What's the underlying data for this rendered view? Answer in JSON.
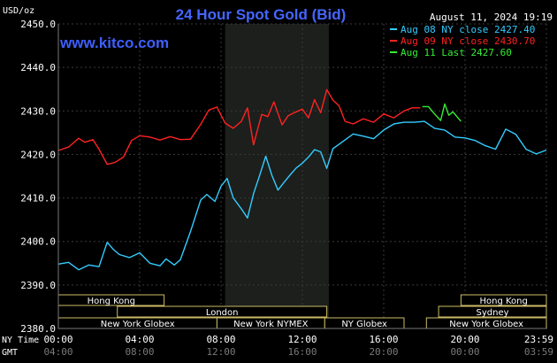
{
  "chart_data": {
    "type": "line",
    "title": "24 Hour Spot Gold (Bid)",
    "timestamp": "August 11, 2024 19:19",
    "brand": "www.kitco.com",
    "y_unit": "USD/oz",
    "ylim": [
      2380,
      2450
    ],
    "y_ticks": [
      "2450.0",
      "2440.0",
      "2430.0",
      "2420.0",
      "2410.0",
      "2400.0",
      "2390.0",
      "2380.0"
    ],
    "x_row_labels": {
      "ny": "NY Time",
      "gmt": "GMT"
    },
    "x_ticks_ny": [
      "00:00",
      "04:00",
      "08:00",
      "12:00",
      "16:00",
      "20:00",
      "23:59"
    ],
    "x_ticks_gmt": [
      "04:00",
      "08:00",
      "12:00",
      "16:00",
      "20:00",
      "00:00",
      "03:59"
    ],
    "x_range_hours": [
      0,
      24
    ],
    "highlight_hours": [
      8.2,
      13.3
    ],
    "legend": [
      {
        "label": "Aug 08 NY close 2427.40",
        "color": "#33ccff"
      },
      {
        "label": "Aug 09 NY close 2430.70",
        "color": "#ff2222"
      },
      {
        "label": "Aug 11 Last 2427.60",
        "color": "#33ee33"
      }
    ],
    "series": [
      {
        "name": "Aug 08",
        "color": "#33ccff",
        "x": [
          0,
          0.5,
          1,
          1.5,
          2,
          2.4,
          2.7,
          3,
          3.5,
          4,
          4.5,
          5,
          5.3,
          5.7,
          6,
          6.5,
          7,
          7.3,
          7.7,
          8,
          8.3,
          8.6,
          9,
          9.3,
          9.6,
          9.9,
          10.2,
          10.5,
          10.8,
          11.1,
          11.4,
          11.7,
          12,
          12.3,
          12.6,
          12.9,
          13.2,
          13.5,
          14,
          14.5,
          15,
          15.5,
          16,
          16.5,
          17,
          17.5,
          18,
          18.5,
          19,
          19.5,
          20,
          20.5,
          21,
          21.5,
          22,
          22.5,
          23,
          23.5,
          24
        ],
        "values": [
          2394.8,
          2395.2,
          2393.5,
          2394.6,
          2394.2,
          2399.8,
          2398.2,
          2397.0,
          2396.3,
          2397.4,
          2395.0,
          2394.4,
          2396.0,
          2394.6,
          2395.8,
          2402.3,
          2409.5,
          2410.8,
          2409.2,
          2412.7,
          2414.5,
          2410.0,
          2407.5,
          2405.4,
          2411.0,
          2415.2,
          2419.6,
          2415.2,
          2411.8,
          2413.6,
          2415.3,
          2416.9,
          2418.0,
          2419.4,
          2421.1,
          2420.6,
          2416.8,
          2421.3,
          2423.0,
          2424.7,
          2424.2,
          2423.6,
          2425.6,
          2427.0,
          2427.4,
          2427.4,
          2427.6,
          2426.0,
          2425.6,
          2424.0,
          2423.8,
          2423.2,
          2422.0,
          2421.2,
          2425.8,
          2424.6,
          2421.2,
          2420.1,
          2421.0
        ]
      },
      {
        "name": "Aug 09",
        "color": "#ff2222",
        "x": [
          0,
          0.5,
          1,
          1.3,
          1.7,
          2,
          2.4,
          2.8,
          3.2,
          3.6,
          4,
          4.5,
          5,
          5.5,
          6,
          6.5,
          7,
          7.4,
          7.8,
          8.2,
          8.6,
          9,
          9.3,
          9.6,
          9.8,
          10,
          10.3,
          10.6,
          11,
          11.3,
          11.6,
          12,
          12.3,
          12.6,
          12.9,
          13.2,
          13.5,
          13.8,
          14.1,
          14.5,
          15,
          15.5,
          16,
          16.5,
          17,
          17.4,
          17.8
        ],
        "values": [
          2420.9,
          2421.7,
          2423.7,
          2422.8,
          2423.4,
          2421.2,
          2417.7,
          2418.2,
          2419.4,
          2423.2,
          2424.3,
          2424.0,
          2423.3,
          2424.1,
          2423.4,
          2423.5,
          2426.9,
          2430.2,
          2430.9,
          2427.2,
          2426.0,
          2427.6,
          2430.7,
          2422.2,
          2425.8,
          2429.2,
          2428.7,
          2432.1,
          2426.8,
          2428.9,
          2429.6,
          2430.4,
          2428.4,
          2432.6,
          2429.6,
          2434.9,
          2432.5,
          2431.2,
          2427.6,
          2427.0,
          2428.2,
          2427.4,
          2429.3,
          2428.4,
          2430.0,
          2430.7,
          2430.7
        ]
      },
      {
        "name": "Aug 11",
        "color": "#33ee33",
        "x": [
          17.9,
          18.2,
          18.5,
          18.8,
          19.0,
          19.2,
          19.4,
          19.6,
          19.8
        ],
        "values": [
          2431.0,
          2431.0,
          2429.3,
          2427.8,
          2431.6,
          2429.0,
          2429.8,
          2428.7,
          2427.6
        ]
      }
    ],
    "session_bars": [
      {
        "label": "Hong Kong",
        "start": 0,
        "end": 5.2,
        "row": 0
      },
      {
        "label": "London",
        "start": 2.9,
        "end": 13.2,
        "row": 1
      },
      {
        "label": "New York Globex",
        "start": 0,
        "end": 7.8,
        "row": 2
      },
      {
        "label": "New York NYMEX",
        "start": 7.8,
        "end": 13.1,
        "row": 2
      },
      {
        "label": "NY Globex",
        "start": 13.1,
        "end": 17.0,
        "row": 2
      },
      {
        "label": "Hong Kong",
        "start": 19.8,
        "end": 24,
        "row": 0
      },
      {
        "label": "Sydney",
        "start": 18.7,
        "end": 24,
        "row": 1
      },
      {
        "label": "New York Globex",
        "start": 18.1,
        "end": 24,
        "row": 2
      }
    ]
  }
}
